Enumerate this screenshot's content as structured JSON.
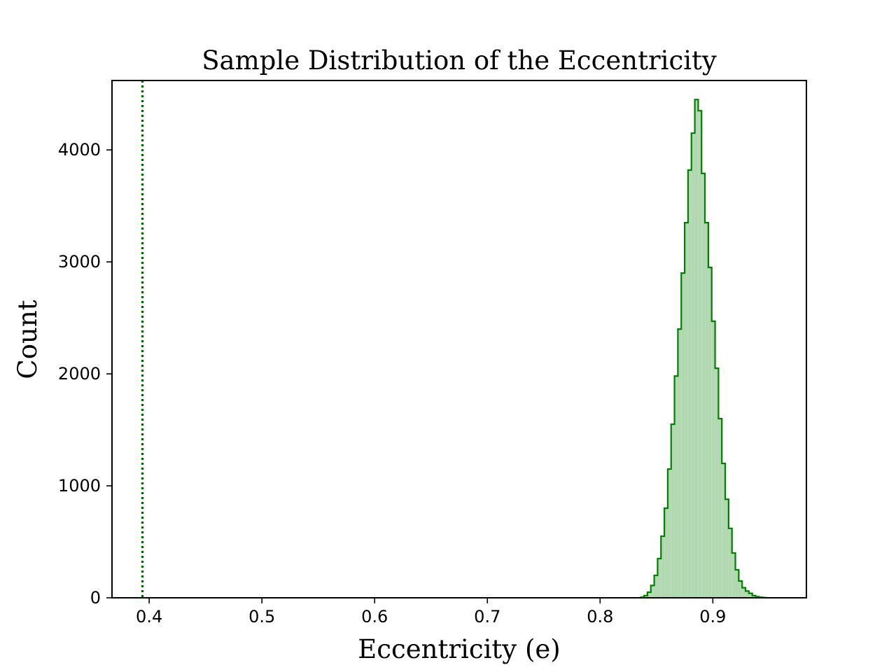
{
  "chart_data": {
    "type": "histogram",
    "title": "Sample Distribution of the Eccentricity",
    "xlabel": "Eccentricity (e)",
    "ylabel": "Count",
    "xlim": [
      0.367,
      0.983
    ],
    "ylim": [
      0,
      4620
    ],
    "xticks": [
      0.4,
      0.5,
      0.6,
      0.7,
      0.8,
      0.9
    ],
    "xtick_labels": [
      "0.4",
      "0.5",
      "0.6",
      "0.7",
      "0.8",
      "0.9"
    ],
    "yticks": [
      0,
      1000,
      2000,
      3000,
      4000
    ],
    "ytick_labels": [
      "0",
      "1000",
      "2000",
      "3000",
      "4000"
    ],
    "grid": false,
    "colors": {
      "line": "#008000",
      "fill": "#b2d8b2",
      "reference": "#006400"
    },
    "reference_line": {
      "x": 0.394,
      "style": "dotted"
    },
    "bin_edges": [
      0.836,
      0.839,
      0.842,
      0.845,
      0.848,
      0.851,
      0.854,
      0.857,
      0.86,
      0.863,
      0.866,
      0.869,
      0.872,
      0.875,
      0.878,
      0.881,
      0.884,
      0.887,
      0.89,
      0.893,
      0.896,
      0.899,
      0.902,
      0.905,
      0.908,
      0.911,
      0.914,
      0.917,
      0.92,
      0.923,
      0.926,
      0.929,
      0.932,
      0.935,
      0.938,
      0.941,
      0.944,
      0.947
    ],
    "counts": [
      5,
      20,
      50,
      110,
      200,
      350,
      550,
      800,
      1150,
      1550,
      1980,
      2400,
      2900,
      3350,
      3820,
      4150,
      4450,
      4350,
      3790,
      3350,
      2950,
      2470,
      2050,
      1600,
      1200,
      880,
      620,
      400,
      250,
      150,
      90,
      60,
      40,
      20,
      10,
      5,
      2
    ]
  }
}
